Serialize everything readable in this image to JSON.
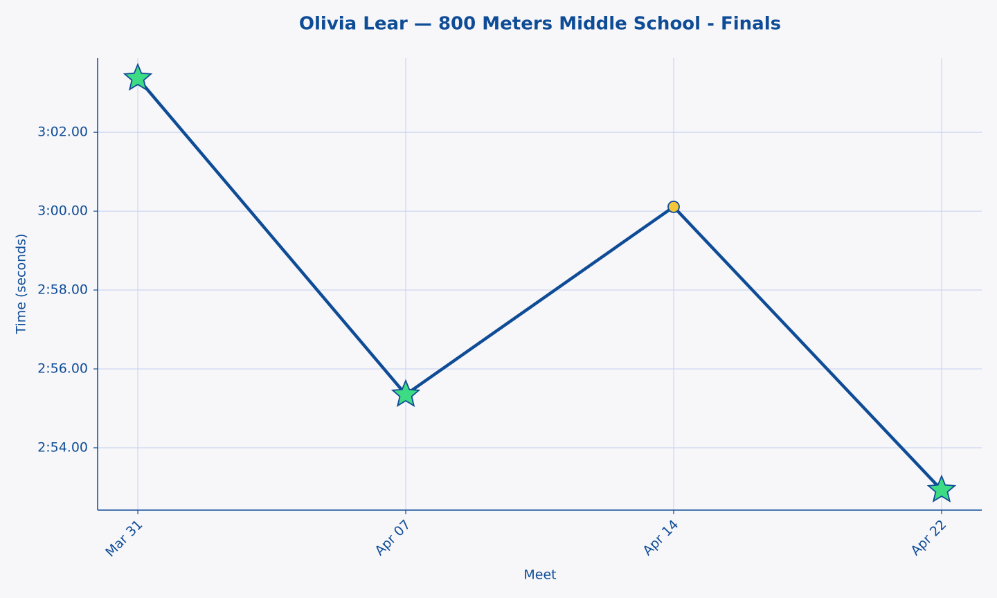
{
  "chart_data": {
    "type": "line",
    "title": "Olivia Lear — 800 Meters Middle School - Finals",
    "x_label": "Meet",
    "y_label": "Time (seconds)",
    "categories": [
      "Mar 31",
      "Apr 07",
      "Apr 14",
      "Apr 22"
    ],
    "series": [
      {
        "color": "#0f4c96",
        "values": [
          183.37,
          175.35,
          180.11,
          172.93
        ],
        "markers": [
          "star",
          "star",
          "circle",
          "star"
        ],
        "marker_colors": [
          "#3ddc84",
          "#3ddc84",
          "#f5c53a",
          "#3ddc84"
        ]
      }
    ],
    "ylim": [
      172.42,
      183.88
    ],
    "yticks": [
      {
        "value": 174,
        "label": "2:54.00"
      },
      {
        "value": 176,
        "label": "2:56.00"
      },
      {
        "value": 178,
        "label": "2:58.00"
      },
      {
        "value": 180,
        "label": "3:00.00"
      },
      {
        "value": 182,
        "label": "3:02.00"
      }
    ],
    "grid": true
  }
}
